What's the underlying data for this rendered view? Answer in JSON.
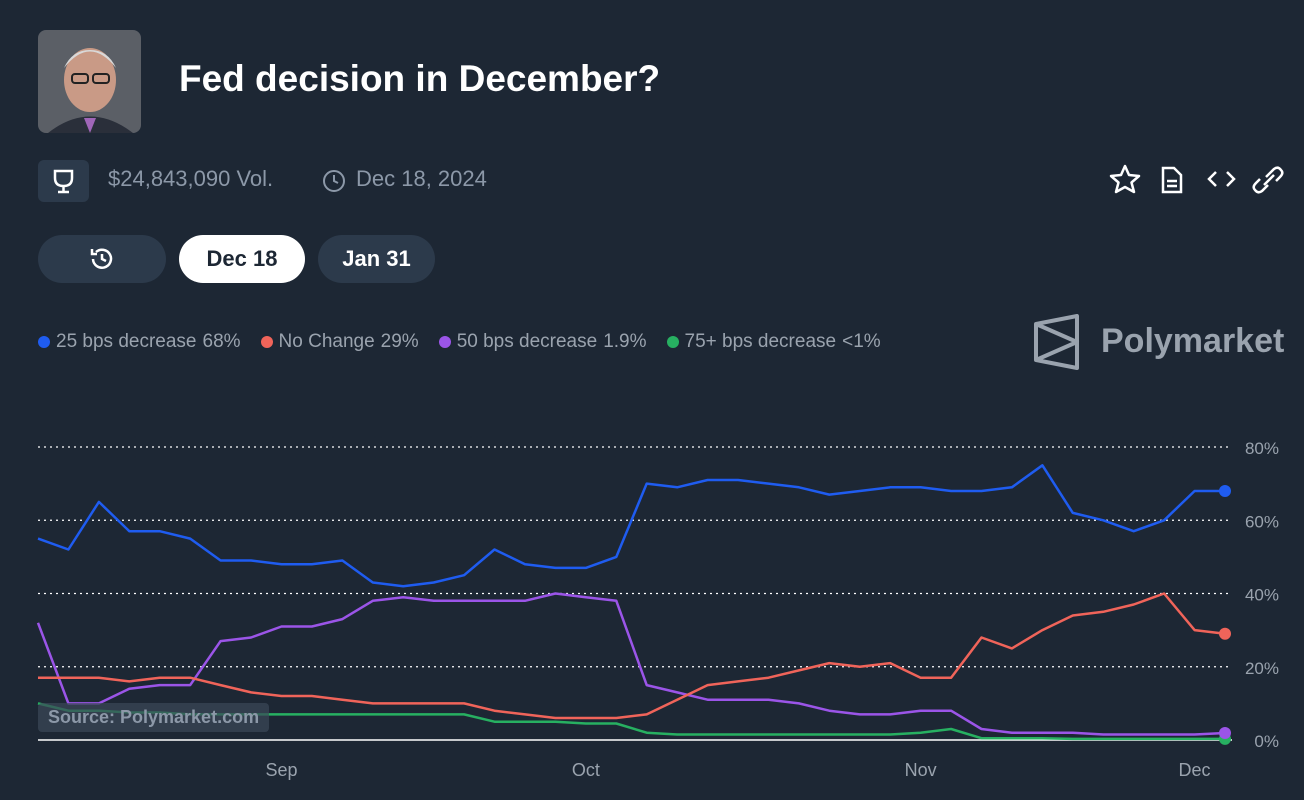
{
  "header": {
    "title": "Fed decision in December?",
    "volume": "$24,843,090 Vol.",
    "end_date": "Dec 18, 2024"
  },
  "tabs": [
    "Dec 18",
    "Jan 31"
  ],
  "brand": "Polymarket",
  "source": "Source: Polymarket.com",
  "chart_data": {
    "type": "line",
    "categories": [
      null,
      null,
      null,
      null,
      null,
      null,
      null,
      null,
      "Sep",
      null,
      null,
      null,
      null,
      null,
      null,
      null,
      null,
      null,
      "Oct",
      null,
      null,
      null,
      null,
      null,
      null,
      null,
      null,
      null,
      null,
      "Nov",
      null,
      null,
      null,
      null,
      null,
      null,
      null,
      null,
      "Dec",
      null
    ],
    "series": [
      {
        "name": "25 bps decrease",
        "label": "68%",
        "color": "#1f5cf0",
        "values": [
          55,
          52,
          65,
          57,
          57,
          55,
          49,
          49,
          48,
          48,
          49,
          43,
          42,
          43,
          45,
          52,
          48,
          47,
          47,
          50,
          70,
          69,
          71,
          71,
          70,
          69,
          67,
          68,
          69,
          69,
          68,
          68,
          69,
          75,
          62,
          60,
          57,
          60,
          68,
          68
        ]
      },
      {
        "name": "No Change",
        "label": "29%",
        "color": "#f0645a",
        "values": [
          17,
          17,
          17,
          16,
          17,
          17,
          15,
          13,
          12,
          12,
          11,
          10,
          10,
          10,
          10,
          8,
          7,
          6,
          6,
          6,
          7,
          11,
          15,
          16,
          17,
          19,
          21,
          20,
          21,
          17,
          17,
          28,
          25,
          30,
          34,
          35,
          37,
          40,
          30,
          29
        ]
      },
      {
        "name": "50 bps decrease",
        "label": "1.9%",
        "color": "#9b55e8",
        "values": [
          32,
          10,
          10,
          14,
          15,
          15,
          27,
          28,
          31,
          31,
          33,
          38,
          39,
          38,
          38,
          38,
          38,
          40,
          39,
          38,
          15,
          13,
          11,
          11,
          11,
          10,
          8,
          7,
          7,
          8,
          8,
          3,
          2,
          2,
          2,
          1.5,
          1.5,
          1.5,
          1.5,
          1.9
        ]
      },
      {
        "name": "75+ bps decrease",
        "label": "<1%",
        "color": "#27b061",
        "values": [
          10,
          8,
          8,
          7.5,
          7.5,
          7,
          7,
          7,
          7,
          7,
          7,
          7,
          7,
          7,
          7,
          5,
          5,
          5,
          4.5,
          4.5,
          2,
          1.5,
          1.5,
          1.5,
          1.5,
          1.5,
          1.5,
          1.5,
          1.5,
          2,
          3,
          0.5,
          0.5,
          0.5,
          0.3,
          0.3,
          0.3,
          0.3,
          0.3,
          0.3
        ]
      }
    ],
    "ylim": [
      0,
      80
    ],
    "yticks": [
      {
        "value": 0,
        "label": "0%"
      },
      {
        "value": 20,
        "label": "20%"
      },
      {
        "value": 40,
        "label": "40%"
      },
      {
        "value": 60,
        "label": "60%"
      },
      {
        "value": 80,
        "label": "80%"
      }
    ],
    "grid": true
  }
}
